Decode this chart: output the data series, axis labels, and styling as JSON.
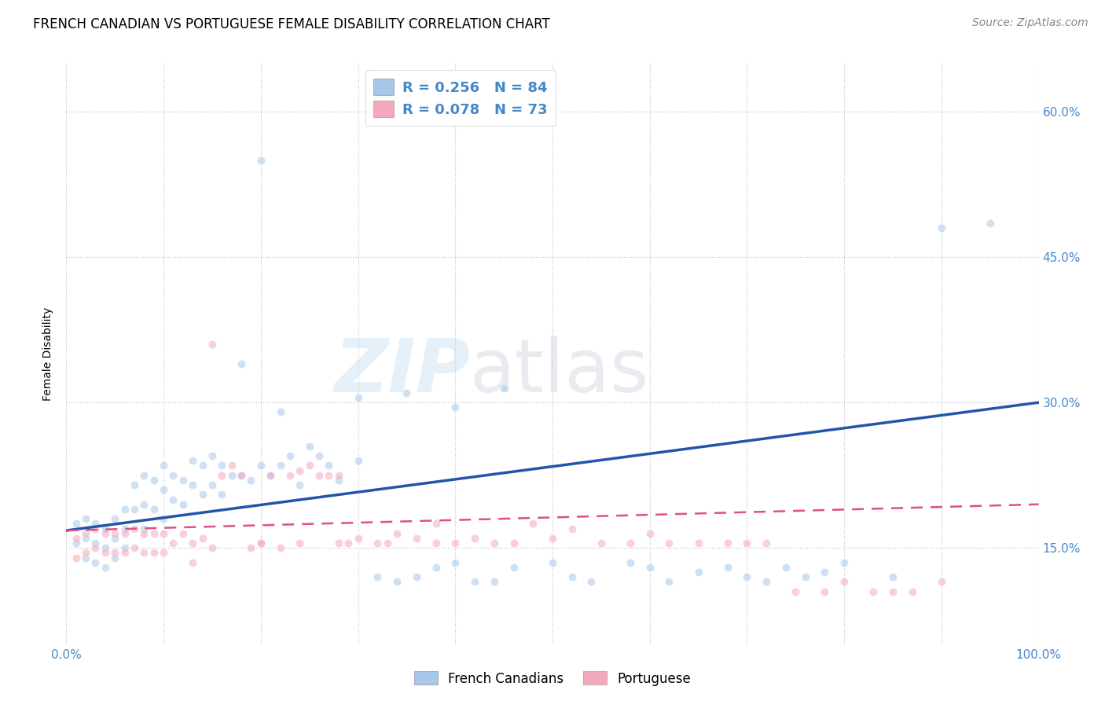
{
  "title": "FRENCH CANADIAN VS PORTUGUESE FEMALE DISABILITY CORRELATION CHART",
  "source": "Source: ZipAtlas.com",
  "ylabel": "Female Disability",
  "watermark_zip": "ZIP",
  "watermark_atlas": "atlas",
  "r_blue": 0.256,
  "n_blue": 84,
  "r_pink": 0.078,
  "n_pink": 73,
  "color_blue_fill": "#a8c8e8",
  "color_pink_fill": "#f4a8bc",
  "color_blue_line": "#2255aa",
  "color_pink_line": "#e05080",
  "color_blue_text": "#4488cc",
  "xmin": 0.0,
  "xmax": 1.0,
  "ymin": 0.05,
  "ymax": 0.65,
  "yticks": [
    0.15,
    0.3,
    0.45,
    0.6
  ],
  "ytick_labels": [
    "15.0%",
    "30.0%",
    "45.0%",
    "60.0%"
  ],
  "blue_scatter_x": [
    0.01,
    0.01,
    0.02,
    0.02,
    0.02,
    0.03,
    0.03,
    0.03,
    0.04,
    0.04,
    0.04,
    0.05,
    0.05,
    0.05,
    0.06,
    0.06,
    0.06,
    0.07,
    0.07,
    0.08,
    0.08,
    0.08,
    0.09,
    0.09,
    0.1,
    0.1,
    0.1,
    0.11,
    0.11,
    0.12,
    0.12,
    0.13,
    0.13,
    0.14,
    0.14,
    0.15,
    0.15,
    0.16,
    0.16,
    0.17,
    0.18,
    0.19,
    0.2,
    0.21,
    0.22,
    0.23,
    0.24,
    0.25,
    0.26,
    0.27,
    0.28,
    0.3,
    0.32,
    0.34,
    0.36,
    0.38,
    0.4,
    0.42,
    0.44,
    0.46,
    0.5,
    0.52,
    0.54,
    0.58,
    0.6,
    0.62,
    0.65,
    0.68,
    0.7,
    0.72,
    0.74,
    0.76,
    0.78,
    0.8,
    0.85,
    0.9,
    0.18,
    0.22,
    0.3,
    0.35,
    0.4,
    0.45,
    0.95,
    0.2
  ],
  "blue_scatter_y": [
    0.175,
    0.155,
    0.18,
    0.16,
    0.14,
    0.175,
    0.155,
    0.135,
    0.17,
    0.15,
    0.13,
    0.18,
    0.16,
    0.14,
    0.19,
    0.17,
    0.15,
    0.215,
    0.19,
    0.225,
    0.195,
    0.17,
    0.22,
    0.19,
    0.235,
    0.21,
    0.18,
    0.225,
    0.2,
    0.22,
    0.195,
    0.24,
    0.215,
    0.235,
    0.205,
    0.245,
    0.215,
    0.235,
    0.205,
    0.225,
    0.225,
    0.22,
    0.235,
    0.225,
    0.235,
    0.245,
    0.215,
    0.255,
    0.245,
    0.235,
    0.22,
    0.24,
    0.12,
    0.115,
    0.12,
    0.13,
    0.135,
    0.115,
    0.115,
    0.13,
    0.135,
    0.12,
    0.115,
    0.135,
    0.13,
    0.115,
    0.125,
    0.13,
    0.12,
    0.115,
    0.13,
    0.12,
    0.125,
    0.135,
    0.12,
    0.48,
    0.34,
    0.29,
    0.305,
    0.31,
    0.295,
    0.315,
    0.485,
    0.55
  ],
  "pink_scatter_x": [
    0.01,
    0.01,
    0.02,
    0.02,
    0.03,
    0.03,
    0.04,
    0.04,
    0.05,
    0.05,
    0.06,
    0.06,
    0.07,
    0.07,
    0.08,
    0.08,
    0.09,
    0.09,
    0.1,
    0.1,
    0.11,
    0.12,
    0.13,
    0.13,
    0.14,
    0.15,
    0.16,
    0.17,
    0.18,
    0.19,
    0.2,
    0.21,
    0.22,
    0.23,
    0.24,
    0.25,
    0.26,
    0.27,
    0.28,
    0.29,
    0.3,
    0.32,
    0.34,
    0.36,
    0.38,
    0.4,
    0.42,
    0.44,
    0.46,
    0.48,
    0.5,
    0.52,
    0.55,
    0.58,
    0.6,
    0.62,
    0.65,
    0.68,
    0.7,
    0.72,
    0.75,
    0.78,
    0.8,
    0.83,
    0.85,
    0.87,
    0.9,
    0.15,
    0.2,
    0.24,
    0.28,
    0.33,
    0.38
  ],
  "pink_scatter_y": [
    0.16,
    0.14,
    0.165,
    0.145,
    0.17,
    0.15,
    0.165,
    0.145,
    0.165,
    0.145,
    0.165,
    0.145,
    0.17,
    0.15,
    0.165,
    0.145,
    0.165,
    0.145,
    0.165,
    0.145,
    0.155,
    0.165,
    0.155,
    0.135,
    0.16,
    0.15,
    0.225,
    0.235,
    0.225,
    0.15,
    0.155,
    0.225,
    0.15,
    0.225,
    0.155,
    0.235,
    0.225,
    0.225,
    0.225,
    0.155,
    0.16,
    0.155,
    0.165,
    0.16,
    0.175,
    0.155,
    0.16,
    0.155,
    0.155,
    0.175,
    0.16,
    0.17,
    0.155,
    0.155,
    0.165,
    0.155,
    0.155,
    0.155,
    0.155,
    0.155,
    0.105,
    0.105,
    0.115,
    0.105,
    0.105,
    0.105,
    0.115,
    0.36,
    0.155,
    0.23,
    0.155,
    0.155,
    0.155
  ],
  "blue_line_y_start": 0.168,
  "blue_line_y_end": 0.3,
  "pink_line_y_start": 0.168,
  "pink_line_y_end": 0.195,
  "legend_labels": [
    "French Canadians",
    "Portuguese"
  ],
  "background_color": "#ffffff",
  "grid_color": "#bbbbbb",
  "title_fontsize": 12,
  "source_fontsize": 10,
  "tick_fontsize": 11,
  "scatter_size": 55,
  "scatter_alpha": 0.55
}
